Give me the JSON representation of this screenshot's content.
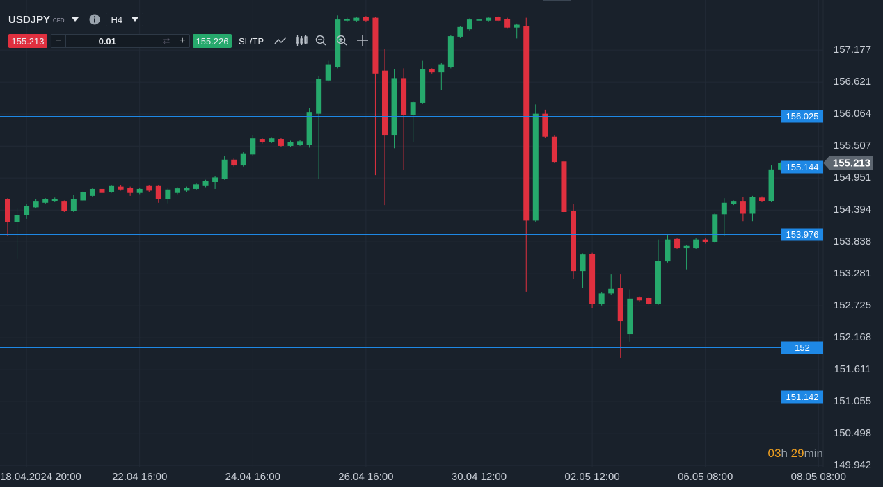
{
  "toolbar": {
    "symbol": "USDJPY",
    "symbol_type": "CFD",
    "timeframe": "H4",
    "bid": "155.213",
    "lot": "0.01",
    "ask": "155.226",
    "sltp": "SL/TP"
  },
  "chart_data": {
    "type": "candlestick",
    "categories": [
      null,
      null,
      "18.04.2024 20:00",
      null,
      null,
      null,
      null,
      null,
      null,
      null,
      null,
      null,
      null,
      null,
      "22.04 16:00",
      null,
      null,
      null,
      null,
      null,
      null,
      null,
      null,
      null,
      null,
      null,
      "24.04 16:00",
      null,
      null,
      null,
      null,
      null,
      null,
      null,
      null,
      null,
      null,
      null,
      "26.04 16:00",
      null,
      null,
      null,
      null,
      null,
      null,
      null,
      null,
      null,
      null,
      null,
      "30.04 12:00",
      null,
      null,
      null,
      null,
      null,
      null,
      null,
      null,
      null,
      null,
      null,
      "02.05 12:00",
      null,
      null,
      null,
      null,
      null,
      null,
      null,
      null,
      null,
      null,
      null,
      "06.05 08:00",
      null,
      null,
      null,
      null,
      null,
      null,
      null,
      null,
      null,
      null,
      null,
      "08.05 08:00"
    ],
    "open": [
      154.58,
      154.18,
      154.3,
      154.44,
      154.52,
      154.55,
      154.54,
      154.38,
      154.56,
      154.64,
      154.76,
      154.71,
      154.8,
      154.78,
      154.69,
      154.81,
      154.81,
      154.59,
      154.69,
      154.73,
      154.76,
      154.81,
      154.88,
      154.94,
      155.27,
      155.17,
      155.36,
      155.63,
      155.58,
      155.63,
      155.51,
      155.53,
      155.53,
      156.07,
      156.65,
      156.88,
      157.69,
      157.69,
      157.75,
      157.74,
      156.82,
      155.69,
      156.69,
      156.05,
      156.26,
      156.84,
      156.79,
      156.88,
      157.41,
      157.54,
      157.69,
      157.69,
      157.75,
      157.72,
      157.57,
      157.59,
      154.21,
      156.07,
      155.67,
      155.24,
      154.38,
      153.33,
      153.63,
      152.76,
      152.94,
      153.03,
      152.23,
      152.87,
      152.86,
      152.76,
      153.5,
      153.89,
      153.73,
      153.73,
      153.88,
      153.84,
      154.32,
      154.5,
      154.54,
      154.33,
      154.61,
      154.55,
      155.1,
      null,
      null,
      null,
      null
    ],
    "high": [
      154.6,
      154.42,
      154.5,
      154.58,
      154.6,
      154.61,
      154.56,
      154.66,
      154.72,
      154.78,
      154.78,
      154.83,
      154.82,
      154.8,
      154.78,
      154.83,
      154.83,
      154.77,
      154.79,
      154.8,
      154.86,
      154.92,
      154.98,
      155.34,
      155.29,
      155.4,
      155.7,
      155.65,
      155.66,
      155.65,
      155.6,
      155.61,
      156.17,
      156.72,
      156.99,
      157.78,
      157.74,
      157.76,
      157.77,
      157.76,
      157.2,
      156.84,
      156.86,
      156.29,
      156.99,
      156.86,
      156.95,
      157.44,
      157.6,
      157.73,
      157.73,
      157.76,
      157.77,
      157.74,
      157.64,
      157.74,
      156.23,
      156.14,
      155.69,
      155.26,
      154.5,
      153.64,
      153.65,
      152.96,
      153.27,
      153.27,
      153.01,
      152.89,
      152.88,
      153.88,
      153.96,
      153.91,
      153.79,
      153.9,
      153.9,
      154.34,
      154.6,
      154.56,
      154.62,
      154.64,
      154.63,
      155.17,
      155.23,
      null,
      null,
      null,
      null
    ],
    "low": [
      153.94,
      153.54,
      154.24,
      154.42,
      154.5,
      154.53,
      154.36,
      154.36,
      154.54,
      154.62,
      154.67,
      154.69,
      154.73,
      154.64,
      154.67,
      154.71,
      154.52,
      154.51,
      154.67,
      154.71,
      154.74,
      154.79,
      154.76,
      154.92,
      155.15,
      155.15,
      155.34,
      155.55,
      155.56,
      155.49,
      155.49,
      155.51,
      155.48,
      154.93,
      156.63,
      156.86,
      157.67,
      157.67,
      157.67,
      155.0,
      154.48,
      155.47,
      155.09,
      155.57,
      156.24,
      156.77,
      156.48,
      156.86,
      157.39,
      157.52,
      157.67,
      157.67,
      157.67,
      157.55,
      157.38,
      152.97,
      154.19,
      155.65,
      155.21,
      154.34,
      153.19,
      153.03,
      152.69,
      152.73,
      152.92,
      151.82,
      152.1,
      152.8,
      152.74,
      152.74,
      153.48,
      153.71,
      153.36,
      153.71,
      153.81,
      153.82,
      153.94,
      154.48,
      154.2,
      154.2,
      154.53,
      154.53,
      155.08,
      null,
      null,
      null,
      null
    ],
    "close": [
      154.18,
      154.3,
      154.46,
      154.54,
      154.58,
      154.59,
      154.38,
      154.59,
      154.7,
      154.76,
      154.69,
      154.81,
      154.75,
      154.69,
      154.76,
      154.73,
      154.58,
      154.75,
      154.77,
      154.78,
      154.84,
      154.9,
      154.96,
      155.27,
      155.17,
      155.38,
      155.64,
      155.57,
      155.64,
      155.51,
      155.58,
      155.59,
      156.1,
      156.68,
      156.93,
      157.71,
      157.72,
      157.74,
      157.69,
      156.77,
      155.69,
      156.69,
      156.05,
      156.27,
      156.84,
      156.79,
      156.93,
      157.42,
      157.58,
      157.71,
      157.71,
      157.74,
      157.69,
      157.57,
      157.62,
      154.21,
      156.07,
      155.67,
      155.23,
      154.36,
      153.33,
      153.62,
      152.76,
      152.94,
      153.02,
      152.46,
      152.85,
      152.82,
      152.76,
      153.51,
      153.88,
      153.73,
      153.77,
      153.88,
      153.83,
      154.32,
      154.52,
      154.54,
      154.33,
      154.62,
      154.55,
      155.1,
      155.21,
      null,
      null,
      null,
      null
    ],
    "up_color": "#26a96c",
    "down_color": "#e0303f",
    "ylim": [
      149.92,
      158.05
    ],
    "yticks": [
      149.942,
      150.498,
      151.055,
      151.611,
      152.168,
      152.725,
      153.281,
      153.838,
      154.394,
      154.951,
      155.507,
      156.064,
      156.621,
      157.177
    ],
    "grid": true,
    "levels": [
      156.025,
      155.144,
      153.976,
      152.0,
      151.142
    ],
    "level_color": "#1e88e5",
    "current_price": 155.213,
    "countdown": {
      "hours": "03",
      "hours_unit": "h",
      "minutes": "29",
      "minutes_unit": "min"
    }
  }
}
